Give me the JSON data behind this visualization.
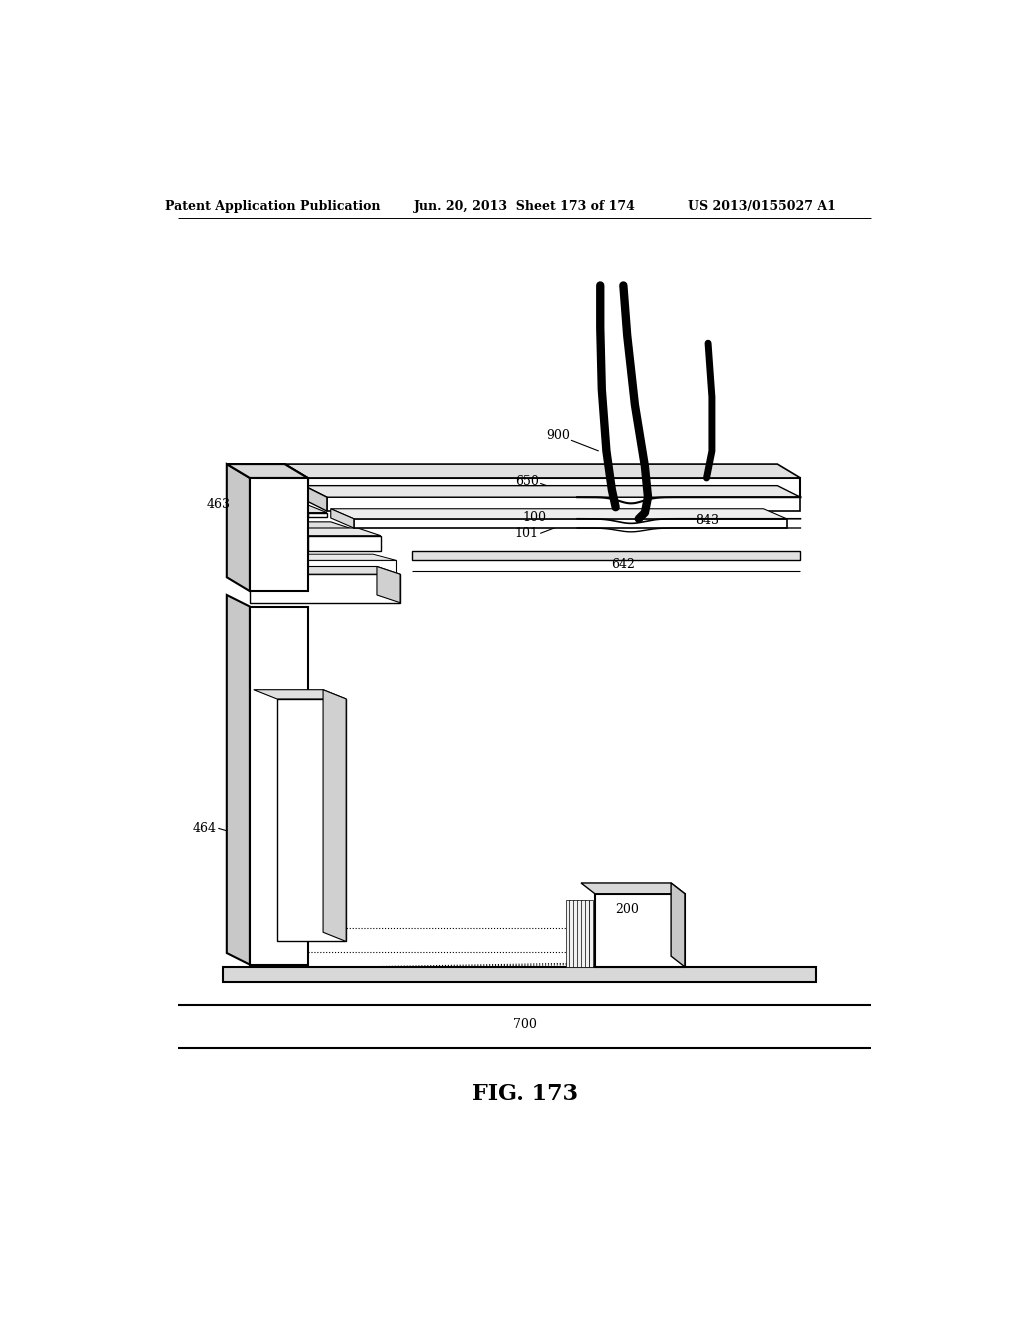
{
  "header_left": "Patent Application Publication",
  "header_mid": "Jun. 20, 2013  Sheet 173 of 174",
  "header_right": "US 2013/0155027 A1",
  "fig_label": "FIG. 173",
  "bg": "#ffffff",
  "lc": "#000000"
}
